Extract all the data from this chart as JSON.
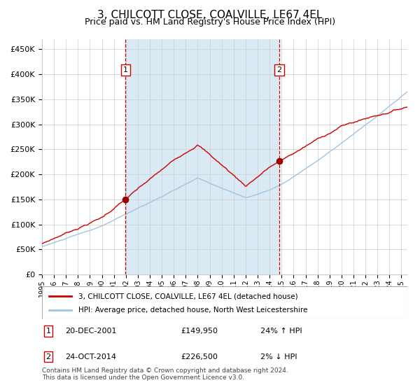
{
  "title": "3, CHILCOTT CLOSE, COALVILLE, LE67 4EL",
  "subtitle": "Price paid vs. HM Land Registry's House Price Index (HPI)",
  "title_fontsize": 11,
  "subtitle_fontsize": 9,
  "ylim": [
    0,
    470000
  ],
  "yticks": [
    0,
    50000,
    100000,
    150000,
    200000,
    250000,
    300000,
    350000,
    400000,
    450000
  ],
  "ytick_labels": [
    "£0",
    "£50K",
    "£100K",
    "£150K",
    "£200K",
    "£250K",
    "£300K",
    "£350K",
    "£400K",
    "£450K"
  ],
  "background_color": "#ffffff",
  "plot_bg_color": "#ffffff",
  "shaded_region_color": "#daeaf5",
  "grid_color": "#cccccc",
  "sale1_date_num": 2001.97,
  "sale1_price": 149950,
  "sale1_label": "1",
  "sale1_date_str": "20-DEC-2001",
  "sale1_price_str": "£149,950",
  "sale1_hpi_str": "24% ↑ HPI",
  "sale2_date_num": 2014.81,
  "sale2_price": 226500,
  "sale2_label": "2",
  "sale2_date_str": "24-OCT-2014",
  "sale2_price_str": "£226,500",
  "sale2_hpi_str": "2% ↓ HPI",
  "legend_line1": "3, CHILCOTT CLOSE, COALVILLE, LE67 4EL (detached house)",
  "legend_line2": "HPI: Average price, detached house, North West Leicestershire",
  "line_red_color": "#cc0000",
  "line_blue_color": "#a0c4e0",
  "marker_color": "#990000",
  "dashed_line_color": "#cc0000",
  "footnote": "Contains HM Land Registry data © Crown copyright and database right 2024.\nThis data is licensed under the Open Government Licence v3.0.",
  "xstart": 1995.0,
  "xend": 2025.5,
  "xticks": [
    1995,
    1996,
    1997,
    1998,
    1999,
    2000,
    2001,
    2002,
    2003,
    2004,
    2005,
    2006,
    2007,
    2008,
    2009,
    2010,
    2011,
    2012,
    2013,
    2014,
    2015,
    2016,
    2017,
    2018,
    2019,
    2020,
    2021,
    2022,
    2023,
    2024,
    2025
  ]
}
